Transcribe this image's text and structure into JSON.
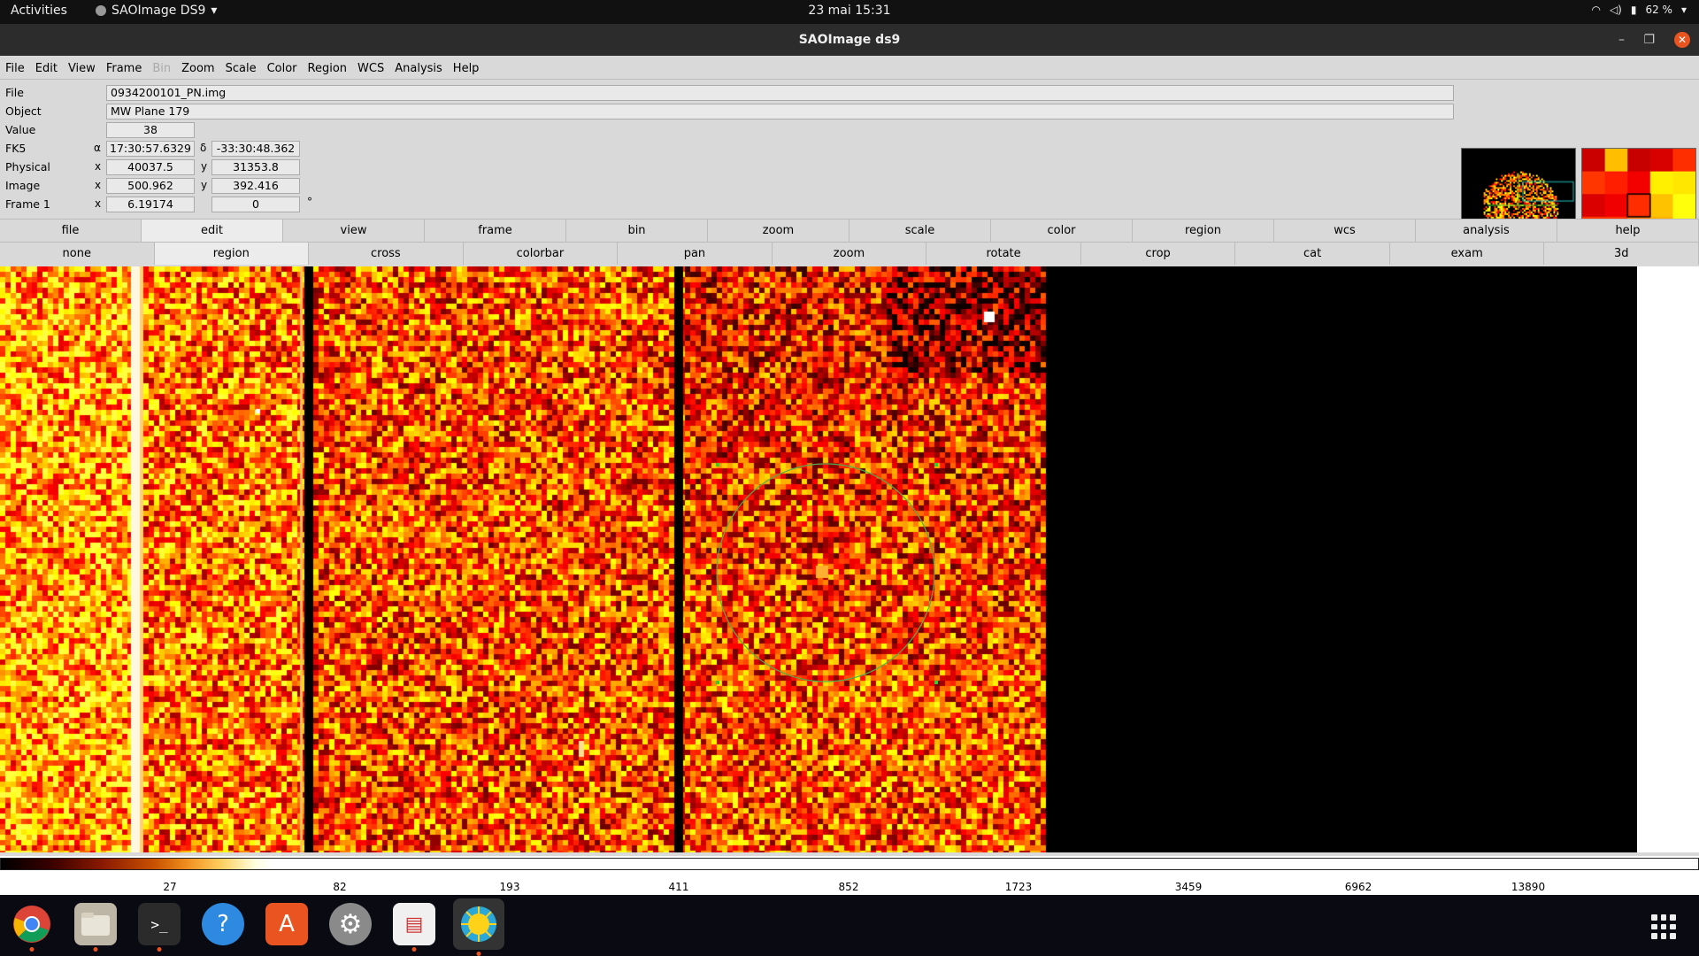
{
  "topbar": {
    "activities": "Activities",
    "app_name": "SAOImage DS9",
    "clock": "23 mai  15:31",
    "battery": "62 %"
  },
  "window": {
    "title": "SAOImage ds9"
  },
  "menu": [
    "File",
    "Edit",
    "View",
    "Frame",
    "Bin",
    "Zoom",
    "Scale",
    "Color",
    "Region",
    "WCS",
    "Analysis",
    "Help"
  ],
  "menu_disabled": [
    "Bin"
  ],
  "info": {
    "file_label": "File",
    "file_value": "0934200101_PN.img",
    "object_label": "Object",
    "object_value": "MW Plane 179",
    "value_label": "Value",
    "value_value": "38",
    "fk5_label": "FK5",
    "fk5_a_sym": "α",
    "fk5_a": "17:30:57.6329",
    "fk5_d_sym": "δ",
    "fk5_d": "-33:30:48.362",
    "physical_label": "Physical",
    "physical_x": "40037.5",
    "physical_y": "31353.8",
    "image_label": "Image",
    "image_x": "500.962",
    "image_y": "392.416",
    "frame_label": "Frame 1",
    "frame_zoom": "6.19174",
    "frame_angle": "0",
    "deg": "°",
    "x": "x",
    "y": "y"
  },
  "buttonbar_main": [
    "file",
    "edit",
    "view",
    "frame",
    "bin",
    "zoom",
    "scale",
    "color",
    "region",
    "wcs",
    "analysis",
    "help"
  ],
  "buttonbar_main_selected": "edit",
  "buttonbar_sub": [
    "none",
    "region",
    "cross",
    "colorbar",
    "pan",
    "zoom",
    "rotate",
    "crop",
    "cat",
    "exam",
    "3d"
  ],
  "buttonbar_sub_selected": "region",
  "colorbar_ticks": [
    "27",
    "82",
    "193",
    "411",
    "852",
    "1723",
    "3459",
    "6962",
    "13890"
  ],
  "region": {
    "shape": "circle",
    "color": "#4caf50"
  },
  "colors": {
    "accent": "#e95420",
    "region": "#33cc33"
  },
  "dock": [
    "chrome-icon",
    "files-icon",
    "terminal-icon",
    "help-icon",
    "software-icon",
    "settings-icon",
    "document-viewer-icon",
    "ds9-icon"
  ]
}
